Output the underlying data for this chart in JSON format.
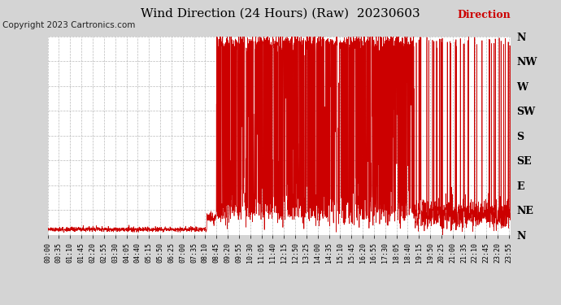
{
  "title": "Wind Direction (24 Hours) (Raw)  20230603",
  "copyright": "Copyright 2023 Cartronics.com",
  "legend_label": "Direction",
  "line_color": "#cc0000",
  "background_color": "#d4d4d4",
  "plot_bg_color": "#ffffff",
  "grid_color": "#aaaaaa",
  "ytick_labels": [
    "N",
    "NE",
    "E",
    "SE",
    "S",
    "SW",
    "W",
    "NW",
    "N"
  ],
  "ytick_values": [
    0,
    45,
    90,
    135,
    180,
    225,
    270,
    315,
    360
  ],
  "ylim": [
    0,
    360
  ],
  "title_fontsize": 11,
  "copyright_fontsize": 7.5,
  "legend_fontsize": 9,
  "ytick_fontsize": 9,
  "xtick_fontsize": 6
}
